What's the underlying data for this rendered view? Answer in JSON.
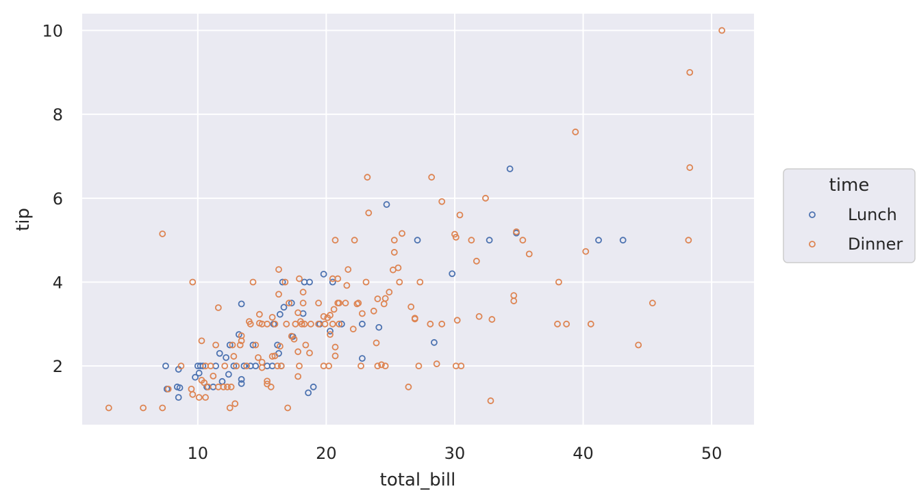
{
  "chart_data": {
    "type": "scatter",
    "title": "",
    "xlabel": "total_bill",
    "ylabel": "tip",
    "xlim": [
      1.0,
      53.3
    ],
    "ylim": [
      0.6,
      10.4
    ],
    "xticks": [
      10,
      20,
      30,
      40,
      50
    ],
    "yticks": [
      2,
      4,
      6,
      8,
      10
    ],
    "grid": true,
    "legend": {
      "title": "time",
      "placement": "right"
    },
    "series": [
      {
        "name": "Lunch",
        "color": "#4c72b0",
        "points": [
          [
            7.5,
            2.0
          ],
          [
            7.6,
            1.45
          ],
          [
            8.4,
            1.5
          ],
          [
            8.5,
            1.25
          ],
          [
            8.5,
            1.92
          ],
          [
            8.6,
            1.48
          ],
          [
            9.8,
            1.73
          ],
          [
            10.0,
            2.0
          ],
          [
            10.1,
            1.83
          ],
          [
            10.2,
            2.0
          ],
          [
            10.4,
            2.0
          ],
          [
            10.7,
            1.5
          ],
          [
            11.2,
            1.5
          ],
          [
            11.4,
            2.0
          ],
          [
            11.7,
            2.3
          ],
          [
            11.9,
            1.63
          ],
          [
            12.2,
            2.2
          ],
          [
            12.4,
            1.8
          ],
          [
            12.5,
            2.5
          ],
          [
            12.8,
            2.0
          ],
          [
            13.0,
            2.0
          ],
          [
            13.2,
            2.75
          ],
          [
            13.4,
            3.48
          ],
          [
            13.4,
            1.58
          ],
          [
            13.4,
            1.68
          ],
          [
            13.6,
            2.0
          ],
          [
            14.1,
            2.0
          ],
          [
            14.3,
            2.5
          ],
          [
            14.5,
            2.0
          ],
          [
            15.4,
            2.0
          ],
          [
            15.8,
            2.0
          ],
          [
            15.9,
            3.0
          ],
          [
            16.2,
            2.5
          ],
          [
            16.3,
            2.3
          ],
          [
            16.4,
            3.23
          ],
          [
            16.5,
            2.0
          ],
          [
            16.6,
            4.0
          ],
          [
            16.7,
            3.4
          ],
          [
            17.3,
            3.5
          ],
          [
            17.4,
            2.7
          ],
          [
            18.2,
            3.25
          ],
          [
            18.3,
            4.0
          ],
          [
            18.6,
            1.36
          ],
          [
            18.7,
            4.0
          ],
          [
            19.0,
            1.5
          ],
          [
            19.5,
            3.0
          ],
          [
            19.8,
            4.19
          ],
          [
            20.3,
            2.83
          ],
          [
            20.5,
            4.0
          ],
          [
            21.2,
            3.0
          ],
          [
            22.8,
            3.0
          ],
          [
            22.8,
            2.18
          ],
          [
            24.1,
            2.92
          ],
          [
            24.7,
            5.85
          ],
          [
            27.1,
            5.0
          ],
          [
            28.4,
            2.56
          ],
          [
            29.8,
            4.2
          ],
          [
            32.7,
            5.0
          ],
          [
            34.3,
            6.7
          ],
          [
            34.8,
            5.17
          ],
          [
            41.2,
            5.0
          ],
          [
            43.1,
            5.0
          ]
        ]
      },
      {
        "name": "Dinner",
        "color": "#dd8452",
        "points": [
          [
            3.07,
            1.0
          ],
          [
            5.75,
            1.0
          ],
          [
            7.25,
            5.15
          ],
          [
            7.25,
            1.0
          ],
          [
            7.7,
            1.45
          ],
          [
            8.7,
            2.0
          ],
          [
            9.5,
            1.45
          ],
          [
            9.6,
            1.32
          ],
          [
            9.6,
            4.0
          ],
          [
            10.1,
            1.25
          ],
          [
            10.3,
            2.6
          ],
          [
            10.3,
            1.66
          ],
          [
            10.5,
            1.6
          ],
          [
            10.6,
            1.25
          ],
          [
            10.6,
            2.0
          ],
          [
            10.8,
            1.5
          ],
          [
            11.0,
            2.0
          ],
          [
            11.2,
            1.76
          ],
          [
            11.4,
            2.5
          ],
          [
            11.6,
            1.5
          ],
          [
            11.6,
            3.39
          ],
          [
            12.0,
            1.5
          ],
          [
            12.1,
            2.0
          ],
          [
            12.3,
            1.5
          ],
          [
            12.5,
            1.0
          ],
          [
            12.6,
            1.5
          ],
          [
            12.7,
            2.5
          ],
          [
            12.8,
            2.23
          ],
          [
            12.9,
            1.1
          ],
          [
            13.0,
            2.0
          ],
          [
            13.3,
            2.5
          ],
          [
            13.4,
            2.6
          ],
          [
            13.4,
            2.72
          ],
          [
            13.8,
            2.0
          ],
          [
            14.0,
            3.06
          ],
          [
            14.1,
            3.0
          ],
          [
            14.3,
            4.0
          ],
          [
            14.5,
            2.5
          ],
          [
            14.7,
            2.2
          ],
          [
            14.8,
            3.23
          ],
          [
            14.8,
            3.02
          ],
          [
            15.0,
            1.96
          ],
          [
            15.0,
            3.0
          ],
          [
            15.0,
            2.09
          ],
          [
            15.4,
            1.57
          ],
          [
            15.4,
            3.0
          ],
          [
            15.4,
            1.64
          ],
          [
            15.7,
            1.5
          ],
          [
            15.8,
            2.23
          ],
          [
            15.8,
            3.16
          ],
          [
            16.0,
            2.24
          ],
          [
            16.0,
            3.0
          ],
          [
            16.2,
            2.0
          ],
          [
            16.3,
            4.3
          ],
          [
            16.3,
            3.71
          ],
          [
            16.4,
            2.47
          ],
          [
            16.5,
            2.0
          ],
          [
            16.8,
            4.0
          ],
          [
            16.9,
            3.0
          ],
          [
            17.0,
            1.0
          ],
          [
            17.1,
            3.5
          ],
          [
            17.3,
            2.71
          ],
          [
            17.5,
            2.64
          ],
          [
            17.6,
            3.0
          ],
          [
            17.8,
            3.27
          ],
          [
            17.8,
            2.34
          ],
          [
            17.8,
            1.75
          ],
          [
            17.9,
            2.0
          ],
          [
            17.9,
            4.08
          ],
          [
            18.0,
            3.06
          ],
          [
            18.1,
            3.0
          ],
          [
            18.2,
            3.76
          ],
          [
            18.2,
            3.5
          ],
          [
            18.3,
            3.0
          ],
          [
            18.4,
            2.5
          ],
          [
            18.7,
            2.31
          ],
          [
            18.8,
            3.0
          ],
          [
            19.4,
            3.5
          ],
          [
            19.4,
            3.0
          ],
          [
            19.8,
            3.18
          ],
          [
            19.8,
            2.0
          ],
          [
            19.9,
            3.0
          ],
          [
            20.1,
            3.15
          ],
          [
            20.2,
            2.0
          ],
          [
            20.3,
            3.21
          ],
          [
            20.3,
            2.75
          ],
          [
            20.5,
            3.0
          ],
          [
            20.5,
            4.08
          ],
          [
            20.6,
            3.35
          ],
          [
            20.7,
            2.45
          ],
          [
            20.7,
            5.0
          ],
          [
            20.7,
            2.24
          ],
          [
            20.9,
            4.08
          ],
          [
            20.9,
            3.5
          ],
          [
            21.0,
            3.5
          ],
          [
            21.0,
            3.0
          ],
          [
            21.5,
            3.5
          ],
          [
            21.6,
            3.92
          ],
          [
            21.7,
            4.3
          ],
          [
            22.1,
            2.88
          ],
          [
            22.2,
            5.0
          ],
          [
            22.4,
            3.48
          ],
          [
            22.5,
            3.5
          ],
          [
            22.7,
            2.0
          ],
          [
            22.8,
            3.25
          ],
          [
            23.1,
            4.0
          ],
          [
            23.2,
            6.5
          ],
          [
            23.3,
            5.65
          ],
          [
            23.7,
            3.31
          ],
          [
            23.9,
            2.55
          ],
          [
            24.0,
            3.6
          ],
          [
            24.0,
            2.0
          ],
          [
            24.3,
            2.03
          ],
          [
            24.5,
            3.48
          ],
          [
            24.6,
            3.61
          ],
          [
            24.6,
            2.0
          ],
          [
            24.9,
            3.76
          ],
          [
            25.2,
            4.29
          ],
          [
            25.3,
            5.0
          ],
          [
            25.3,
            4.71
          ],
          [
            25.6,
            4.34
          ],
          [
            25.7,
            4.0
          ],
          [
            25.9,
            5.16
          ],
          [
            26.4,
            1.5
          ],
          [
            26.6,
            3.41
          ],
          [
            26.9,
            3.12
          ],
          [
            26.9,
            3.14
          ],
          [
            27.2,
            2.0
          ],
          [
            27.3,
            4.0
          ],
          [
            28.1,
            3.0
          ],
          [
            28.2,
            6.5
          ],
          [
            28.6,
            2.05
          ],
          [
            29.0,
            3.0
          ],
          [
            29.0,
            5.92
          ],
          [
            30.0,
            5.14
          ],
          [
            30.1,
            5.07
          ],
          [
            30.1,
            2.0
          ],
          [
            30.2,
            3.09
          ],
          [
            30.4,
            5.6
          ],
          [
            30.5,
            2.0
          ],
          [
            31.3,
            5.0
          ],
          [
            31.7,
            4.5
          ],
          [
            31.9,
            3.18
          ],
          [
            32.4,
            6.0
          ],
          [
            32.8,
            1.17
          ],
          [
            32.9,
            3.11
          ],
          [
            34.6,
            3.55
          ],
          [
            34.6,
            3.68
          ],
          [
            34.8,
            5.2
          ],
          [
            35.3,
            5.0
          ],
          [
            35.8,
            4.67
          ],
          [
            38.0,
            3.0
          ],
          [
            38.1,
            4.0
          ],
          [
            38.7,
            3.0
          ],
          [
            39.4,
            7.58
          ],
          [
            40.2,
            4.73
          ],
          [
            40.6,
            3.0
          ],
          [
            44.3,
            2.5
          ],
          [
            45.4,
            3.5
          ],
          [
            48.2,
            5.0
          ],
          [
            48.3,
            6.73
          ],
          [
            48.3,
            9.0
          ],
          [
            50.8,
            10.0
          ]
        ]
      }
    ]
  }
}
